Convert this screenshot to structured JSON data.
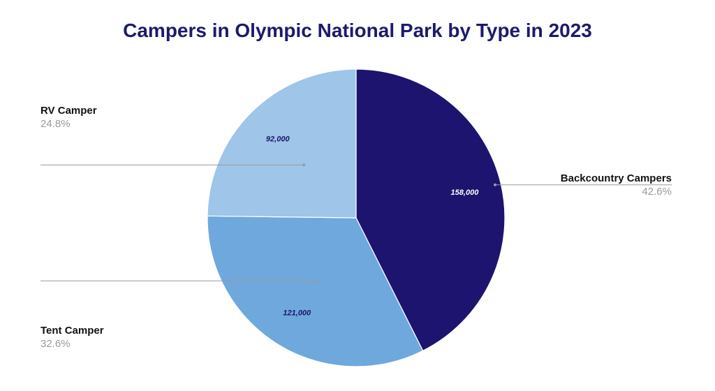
{
  "chart_data": {
    "type": "pie",
    "title": "Campers in Olympic National Park by Type in 2023",
    "categories": [
      "Backcountry Campers",
      "Tent Camper",
      "RV Camper"
    ],
    "values": [
      158000,
      121000,
      92000
    ],
    "value_labels": [
      "158,000",
      "121,000",
      "92,000"
    ],
    "percent_labels": [
      "42.6%",
      "32.6%",
      "24.8%"
    ],
    "colors": [
      "#1c146e",
      "#6fa8dc",
      "#9fc5e8"
    ],
    "value_label_colors": [
      "#ffffff",
      "#1c146e",
      "#1c146e"
    ],
    "title_color": "#1c1a6d",
    "legend": "callout labels beside slices",
    "start_angle": "12 o'clock, clockwise"
  }
}
